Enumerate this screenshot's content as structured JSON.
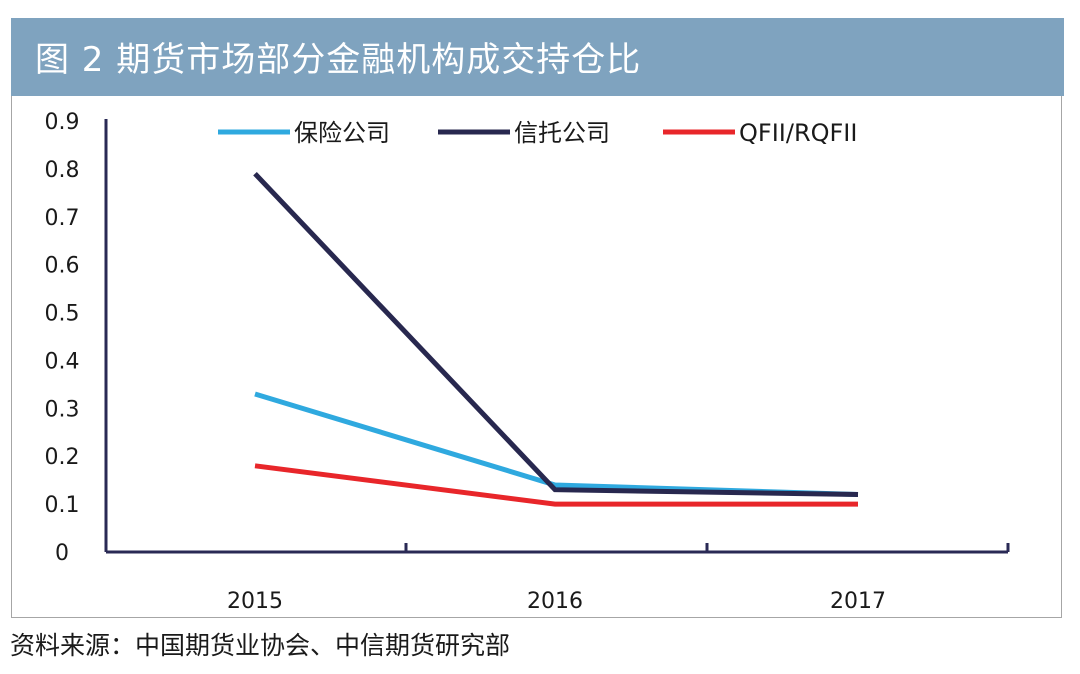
{
  "title": "图 2  期货市场部分金融机构成交持仓比",
  "source": "资料来源：中国期货业协会、中信期货研究部",
  "colors": {
    "header_bg": "#7fa3bf",
    "axis": "#2a2a55"
  },
  "chart_data": {
    "type": "line",
    "title": "图 2  期货市场部分金融机构成交持仓比",
    "xlabel": "",
    "ylabel": "",
    "categories": [
      "2015",
      "2016",
      "2017"
    ],
    "ylim": [
      0,
      0.9
    ],
    "yticks": [
      "0",
      "0.1",
      "0.2",
      "0.3",
      "0.4",
      "0.5",
      "0.6",
      "0.7",
      "0.8",
      "0.9"
    ],
    "grid": false,
    "legend_position": "top",
    "series": [
      {
        "name": "保险公司",
        "color": "#2fa9df",
        "values": [
          0.33,
          0.14,
          0.12
        ]
      },
      {
        "name": "信托公司",
        "color": "#28284f",
        "values": [
          0.79,
          0.13,
          0.12
        ]
      },
      {
        "name": "QFII/RQFII",
        "color": "#e8262a",
        "values": [
          0.18,
          0.1,
          0.1
        ]
      }
    ]
  }
}
